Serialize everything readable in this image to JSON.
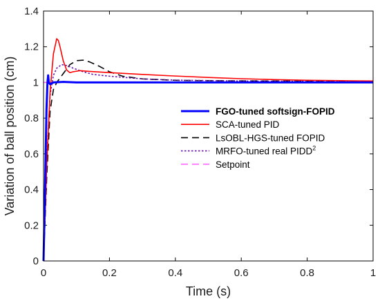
{
  "chart_data": {
    "type": "line",
    "xlabel": "Time (s)",
    "ylabel": "Variation of ball position (cm)",
    "xlim": [
      0,
      1
    ],
    "ylim": [
      0,
      1.4
    ],
    "x_ticks": [
      "0",
      "0.2",
      "0.4",
      "0.6",
      "0.8",
      "1"
    ],
    "y_ticks": [
      "0",
      "0.2",
      "0.4",
      "0.6",
      "0.8",
      "1",
      "1.2",
      "1.4"
    ],
    "grid": false,
    "legend_position": "center-right",
    "series": [
      {
        "name": "FGO-tuned softsign-FOPID",
        "color": "#0000ff",
        "style": "solid",
        "bold": true,
        "points": [
          [
            0,
            0
          ],
          [
            0.005,
            0.45
          ],
          [
            0.009,
            0.85
          ],
          [
            0.012,
            1.0
          ],
          [
            0.014,
            1.04
          ],
          [
            0.016,
            1.0
          ],
          [
            0.02,
            0.99
          ],
          [
            0.03,
            1.0
          ],
          [
            0.06,
            1.003
          ],
          [
            0.1,
            1.0
          ],
          [
            0.2,
            1.0
          ],
          [
            0.4,
            1.0
          ],
          [
            0.7,
            1.0
          ],
          [
            1.0,
            1.0
          ]
        ]
      },
      {
        "name": "SCA-tuned PID",
        "color": "#ff0000",
        "style": "solid",
        "bold": false,
        "points": [
          [
            0,
            0
          ],
          [
            0.01,
            0.55
          ],
          [
            0.02,
            0.95
          ],
          [
            0.03,
            1.16
          ],
          [
            0.04,
            1.245
          ],
          [
            0.045,
            1.235
          ],
          [
            0.05,
            1.2
          ],
          [
            0.06,
            1.12
          ],
          [
            0.07,
            1.07
          ],
          [
            0.08,
            1.055
          ],
          [
            0.09,
            1.06
          ],
          [
            0.11,
            1.066
          ],
          [
            0.14,
            1.062
          ],
          [
            0.2,
            1.055
          ],
          [
            0.3,
            1.045
          ],
          [
            0.4,
            1.036
          ],
          [
            0.5,
            1.028
          ],
          [
            0.6,
            1.021
          ],
          [
            0.7,
            1.016
          ],
          [
            0.8,
            1.012
          ],
          [
            0.9,
            1.01
          ],
          [
            1.0,
            1.008
          ]
        ]
      },
      {
        "name": "LsOBL-HGS-tuned FOPID",
        "color": "#000000",
        "style": "dash",
        "bold": false,
        "points": [
          [
            0,
            0
          ],
          [
            0.01,
            0.48
          ],
          [
            0.02,
            0.84
          ],
          [
            0.03,
            0.96
          ],
          [
            0.04,
            1.0
          ],
          [
            0.06,
            1.05
          ],
          [
            0.08,
            1.1
          ],
          [
            0.1,
            1.122
          ],
          [
            0.12,
            1.125
          ],
          [
            0.14,
            1.115
          ],
          [
            0.17,
            1.09
          ],
          [
            0.2,
            1.06
          ],
          [
            0.24,
            1.035
          ],
          [
            0.3,
            1.02
          ],
          [
            0.4,
            1.012
          ],
          [
            0.5,
            1.01
          ],
          [
            0.7,
            1.008
          ],
          [
            1.0,
            1.006
          ]
        ]
      },
      {
        "name": "MRFO-tuned real PIDD",
        "name_sup": "2",
        "color": "#6a0dad",
        "style": "dot",
        "bold": false,
        "points": [
          [
            0,
            0
          ],
          [
            0.01,
            0.58
          ],
          [
            0.02,
            0.93
          ],
          [
            0.03,
            1.04
          ],
          [
            0.04,
            1.08
          ],
          [
            0.055,
            1.1
          ],
          [
            0.07,
            1.095
          ],
          [
            0.09,
            1.08
          ],
          [
            0.12,
            1.06
          ],
          [
            0.15,
            1.045
          ],
          [
            0.2,
            1.035
          ],
          [
            0.3,
            1.02
          ],
          [
            0.4,
            1.013
          ],
          [
            0.6,
            1.008
          ],
          [
            1.0,
            1.004
          ]
        ]
      },
      {
        "name": "Setpoint",
        "color": "#ff66ff",
        "style": "dash",
        "bold": false,
        "points": [
          [
            0,
            1.0
          ],
          [
            1.0,
            1.0
          ]
        ]
      }
    ]
  }
}
